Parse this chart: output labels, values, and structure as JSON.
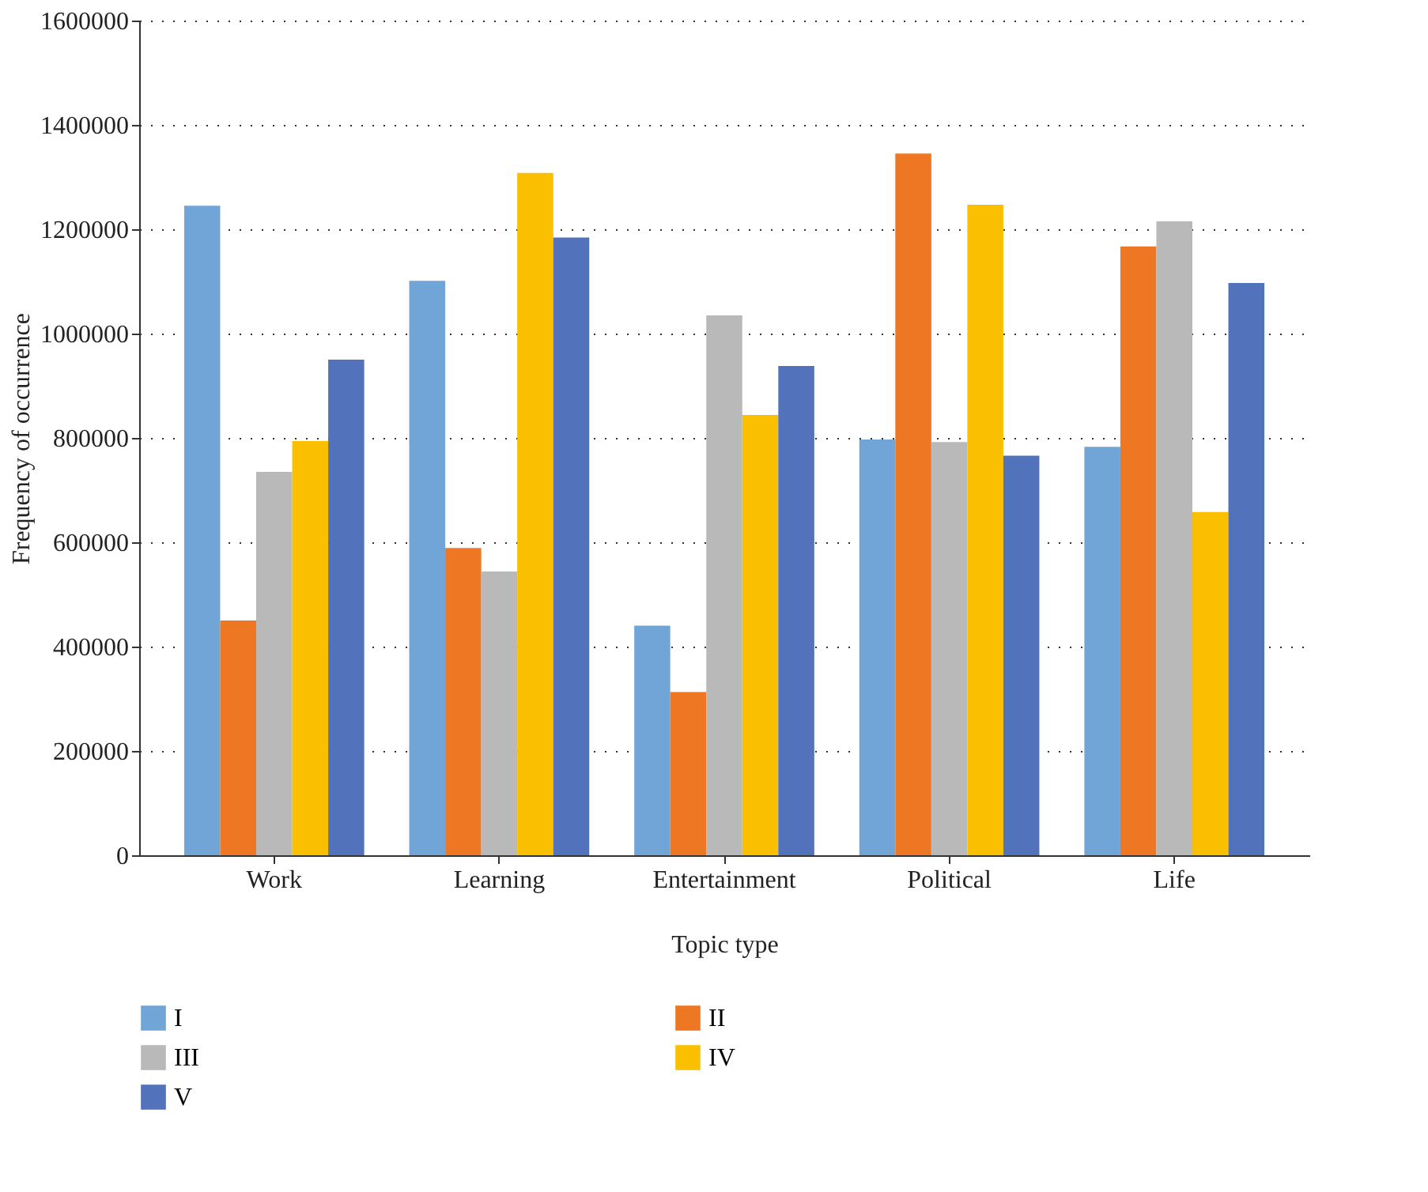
{
  "chart_data": {
    "type": "bar",
    "xlabel": "Topic type",
    "ylabel": "Frequency of occurrence",
    "categories": [
      "Work",
      "Learning",
      "Entertainment",
      "Political",
      "Life"
    ],
    "series": [
      {
        "name": "I",
        "color": "#72a5d7",
        "values": [
          1245000,
          1101000,
          440000,
          797000,
          783000
        ]
      },
      {
        "name": "II",
        "color": "#ed7723",
        "values": [
          450000,
          589000,
          313000,
          1345000,
          1167000
        ]
      },
      {
        "name": "III",
        "color": "#b9b9b9",
        "values": [
          735000,
          544000,
          1035000,
          792000,
          1215000
        ]
      },
      {
        "name": "IV",
        "color": "#fac000",
        "values": [
          794000,
          1308000,
          844000,
          1247000,
          658000
        ]
      },
      {
        "name": "V",
        "color": "#5273bb",
        "values": [
          950000,
          1184000,
          938000,
          766000,
          1097000
        ]
      }
    ],
    "ylim": [
      0,
      1600000
    ],
    "yticks": [
      0,
      200000,
      400000,
      600000,
      800000,
      1000000,
      1200000,
      1400000,
      1600000
    ],
    "grid": "y",
    "legend": "bottom"
  }
}
